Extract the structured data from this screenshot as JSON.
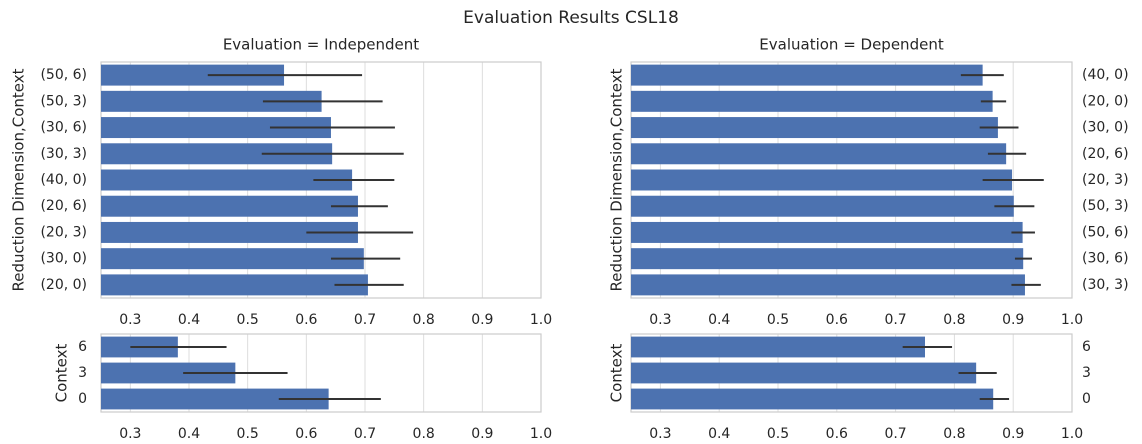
{
  "title": "Evaluation Results CSL18",
  "chart_data": [
    {
      "type": "bar",
      "orientation": "horizontal",
      "title": "Evaluation = Independent",
      "ylabel": "Reduction Dimension,Context",
      "ytick_side": "left",
      "color": "#4c72b0",
      "grid": true,
      "categories": [
        "(50, 6)",
        "(50, 3)",
        "(30, 6)",
        "(30, 3)",
        "(40, 0)",
        "(20, 6)",
        "(20, 3)",
        "(30, 0)",
        "(20, 0)"
      ],
      "values": [
        0.562,
        0.626,
        0.642,
        0.644,
        0.678,
        0.688,
        0.688,
        0.698,
        0.705
      ],
      "ci_low": [
        0.432,
        0.526,
        0.538,
        0.524,
        0.612,
        0.642,
        0.6,
        0.642,
        0.648
      ],
      "ci_high": [
        0.695,
        0.73,
        0.751,
        0.766,
        0.75,
        0.739,
        0.782,
        0.76,
        0.766
      ],
      "xlim": [
        0.25,
        1.0
      ],
      "xticks": [
        0.3,
        0.4,
        0.5,
        0.6,
        0.7,
        0.8,
        0.9,
        {
          "value": 1.0,
          "label": "1.0"
        }
      ]
    },
    {
      "type": "bar",
      "orientation": "horizontal",
      "ylabel": "Context",
      "ytick_side": "left",
      "color": "#4c72b0",
      "grid": true,
      "categories": [
        "6",
        "3",
        "0"
      ],
      "values": [
        0.381,
        0.479,
        0.638
      ],
      "ci_low": [
        0.3,
        0.39,
        0.553
      ],
      "ci_high": [
        0.464,
        0.568,
        0.727
      ],
      "xlim": [
        0.25,
        1.0
      ],
      "xticks": [
        0.3,
        0.4,
        0.5,
        0.6,
        0.7,
        0.8,
        0.9,
        {
          "value": 1.0,
          "label": "1.0"
        }
      ]
    },
    {
      "type": "bar",
      "orientation": "horizontal",
      "title": "Evaluation = Dependent",
      "ylabel": "Reduction Dimension,Context",
      "ytick_side": "right",
      "color": "#4c72b0",
      "grid": true,
      "categories": [
        "(40, 0)",
        "(20, 0)",
        "(30, 0)",
        "(20, 6)",
        "(20, 3)",
        "(50, 3)",
        "(50, 6)",
        "(30, 6)",
        "(30, 3)"
      ],
      "values": [
        0.848,
        0.865,
        0.874,
        0.888,
        0.898,
        0.901,
        0.916,
        0.917,
        0.92
      ],
      "ci_low": [
        0.811,
        0.845,
        0.843,
        0.857,
        0.848,
        0.868,
        0.897,
        0.903,
        0.897
      ],
      "ci_high": [
        0.884,
        0.888,
        0.909,
        0.922,
        0.952,
        0.936,
        0.937,
        0.932,
        0.947
      ],
      "xlim": [
        0.25,
        1.0
      ],
      "xticks": [
        0.3,
        0.4,
        0.5,
        0.6,
        0.7,
        0.8,
        0.9,
        {
          "value": 1.0,
          "label": "1.0"
        }
      ]
    },
    {
      "type": "bar",
      "orientation": "horizontal",
      "ylabel": "Context",
      "ytick_side": "right",
      "color": "#4c72b0",
      "grid": true,
      "categories": [
        "6",
        "3",
        "0"
      ],
      "values": [
        0.75,
        0.837,
        0.866
      ],
      "ci_low": [
        0.712,
        0.807,
        0.843
      ],
      "ci_high": [
        0.796,
        0.872,
        0.893
      ],
      "xlim": [
        0.25,
        1.0
      ],
      "xticks": [
        0.3,
        0.4,
        0.5,
        0.6,
        0.7,
        0.8,
        0.9,
        {
          "value": 1.0,
          "label": "1.0"
        }
      ]
    }
  ]
}
